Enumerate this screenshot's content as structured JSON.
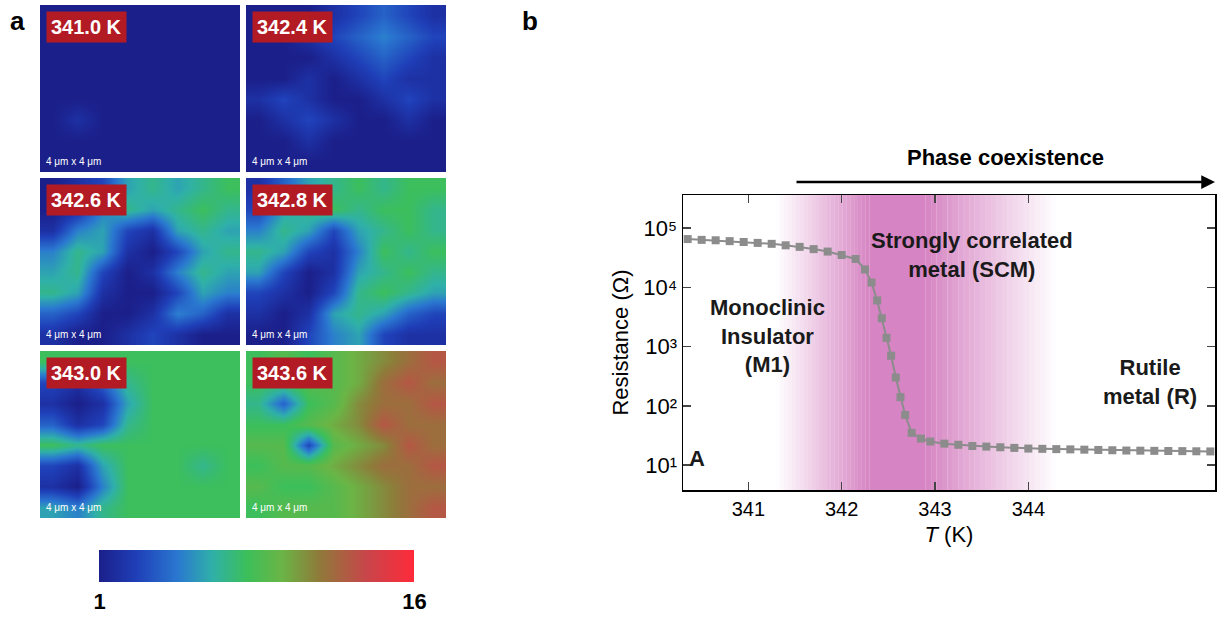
{
  "chart_data": [
    {
      "type": "heatmap",
      "letter": "a",
      "colorbar_range": [
        1,
        16
      ],
      "colorbar_ticks": [
        1,
        16
      ],
      "tiles": [
        {
          "label": "341.0 K",
          "scale_label": "4 μm x 4 μm",
          "cells": [
            [
              1,
              1,
              1,
              1,
              1,
              1,
              1,
              1
            ],
            [
              1,
              1,
              1,
              1,
              1,
              1,
              1,
              1
            ],
            [
              1,
              1,
              1,
              1,
              1,
              1,
              1,
              1
            ],
            [
              1,
              1,
              1,
              1,
              1,
              1,
              1,
              1
            ],
            [
              1,
              1,
              1,
              1,
              1,
              1,
              1,
              1
            ],
            [
              1,
              2,
              1,
              1,
              1,
              1,
              1,
              1
            ],
            [
              1,
              1,
              1,
              1,
              1,
              1,
              1,
              1
            ],
            [
              1,
              1,
              1,
              1,
              1,
              1,
              1,
              1
            ]
          ]
        },
        {
          "label": "342.4 K",
          "scale_label": "4 μm x 4 μm",
          "cells": [
            [
              1,
              1,
              1,
              2,
              3,
              4,
              3,
              2
            ],
            [
              1,
              1,
              2,
              3,
              4,
              5,
              4,
              3
            ],
            [
              1,
              1,
              1,
              2,
              3,
              4,
              3,
              2
            ],
            [
              1,
              1,
              2,
              1,
              2,
              3,
              2,
              2
            ],
            [
              2,
              3,
              2,
              1,
              1,
              2,
              3,
              2
            ],
            [
              1,
              2,
              3,
              2,
              1,
              1,
              2,
              1
            ],
            [
              1,
              1,
              2,
              1,
              1,
              1,
              1,
              1
            ],
            [
              1,
              1,
              1,
              1,
              1,
              1,
              1,
              1
            ]
          ]
        },
        {
          "label": "342.6 K",
          "scale_label": "4 μm x 4 μm",
          "cells": [
            [
              1,
              2,
              3,
              6,
              7,
              6,
              7,
              8
            ],
            [
              1,
              2,
              5,
              7,
              6,
              7,
              8,
              7
            ],
            [
              2,
              5,
              6,
              3,
              2,
              6,
              7,
              6
            ],
            [
              5,
              7,
              6,
              2,
              1,
              3,
              6,
              7
            ],
            [
              6,
              7,
              3,
              1,
              2,
              5,
              7,
              6
            ],
            [
              7,
              6,
              2,
              1,
              1,
              3,
              6,
              5
            ],
            [
              4,
              3,
              1,
              1,
              2,
              5,
              4,
              2
            ],
            [
              2,
              1,
              1,
              2,
              3,
              2,
              1,
              1
            ]
          ]
        },
        {
          "label": "342.8 K",
          "scale_label": "4 μm x 4 μm",
          "cells": [
            [
              2,
              4,
              6,
              7,
              8,
              7,
              8,
              8
            ],
            [
              3,
              6,
              7,
              8,
              7,
              8,
              8,
              7
            ],
            [
              5,
              7,
              6,
              3,
              6,
              7,
              8,
              7
            ],
            [
              7,
              6,
              3,
              2,
              5,
              8,
              7,
              8
            ],
            [
              6,
              3,
              1,
              2,
              6,
              7,
              8,
              7
            ],
            [
              3,
              2,
              1,
              3,
              7,
              8,
              7,
              6
            ],
            [
              2,
              1,
              2,
              6,
              7,
              6,
              4,
              3
            ],
            [
              1,
              1,
              3,
              5,
              6,
              3,
              2,
              2
            ]
          ]
        },
        {
          "label": "343.0 K",
          "scale_label": "4 μm x 4 μm",
          "cells": [
            [
              8,
              8,
              8,
              8,
              8,
              8,
              8,
              8
            ],
            [
              3,
              2,
              4,
              7,
              8,
              8,
              8,
              8
            ],
            [
              2,
              1,
              2,
              6,
              8,
              8,
              8,
              8
            ],
            [
              4,
              2,
              3,
              7,
              8,
              8,
              8,
              8
            ],
            [
              8,
              7,
              8,
              8,
              8,
              8,
              8,
              8
            ],
            [
              3,
              2,
              6,
              8,
              8,
              8,
              7,
              8
            ],
            [
              2,
              1,
              5,
              8,
              8,
              8,
              8,
              8
            ],
            [
              6,
              5,
              7,
              8,
              8,
              8,
              8,
              8
            ]
          ]
        },
        {
          "label": "343.6 K",
          "scale_label": "4 μm x 4 μm",
          "cells": [
            [
              8,
              9,
              8,
              9,
              10,
              11,
              12,
              13
            ],
            [
              8,
              8,
              9,
              9,
              10,
              12,
              13,
              12
            ],
            [
              7,
              4,
              8,
              9,
              11,
              12,
              12,
              13
            ],
            [
              8,
              8,
              9,
              10,
              11,
              13,
              12,
              12
            ],
            [
              9,
              9,
              3,
              9,
              10,
              11,
              13,
              12
            ],
            [
              8,
              9,
              9,
              10,
              11,
              12,
              12,
              13
            ],
            [
              9,
              8,
              8,
              9,
              10,
              11,
              12,
              12
            ],
            [
              8,
              9,
              9,
              9,
              10,
              11,
              12,
              13
            ]
          ]
        }
      ]
    },
    {
      "type": "line",
      "letter": "b",
      "xlabel": "T (K)",
      "ylabel": "Resistance (Ω)",
      "log": "y",
      "grid": false,
      "color": "#8c8c8c",
      "marker": "square",
      "xlim": [
        340.3,
        346.0
      ],
      "xticks": [
        341,
        342,
        343,
        344
      ],
      "ylim": [
        3.8,
        360000
      ],
      "yticks": [
        {
          "value": 10,
          "label": "10¹"
        },
        {
          "value": 100,
          "label": "10²"
        },
        {
          "value": 1000,
          "label": "10³"
        },
        {
          "value": 10000,
          "label": "10⁴"
        },
        {
          "value": 100000,
          "label": "10⁵"
        }
      ],
      "x": [
        340.35,
        340.5,
        340.65,
        340.8,
        340.95,
        341.1,
        341.25,
        341.4,
        341.55,
        341.7,
        341.85,
        342.0,
        342.15,
        342.25,
        342.32,
        342.38,
        342.43,
        342.48,
        342.53,
        342.58,
        342.63,
        342.68,
        342.75,
        342.85,
        342.95,
        343.1,
        343.25,
        343.4,
        343.55,
        343.7,
        343.85,
        344.0,
        344.15,
        344.3,
        344.45,
        344.6,
        344.75,
        344.9,
        345.05,
        345.2,
        345.35,
        345.5,
        345.65,
        345.8,
        345.95
      ],
      "values": [
        65000,
        63000,
        62000,
        60000,
        58000,
        56000,
        54000,
        51000,
        48000,
        44000,
        40000,
        35000,
        30000,
        20000,
        12000,
        6000,
        3000,
        1400,
        700,
        300,
        140,
        70,
        35,
        28,
        25,
        23,
        22,
        21,
        20.5,
        20,
        19.5,
        19,
        18.8,
        18.6,
        18.4,
        18.2,
        18,
        17.8,
        17.6,
        17.5,
        17.4,
        17.3,
        17.2,
        17.1,
        17
      ],
      "shading": {
        "xlim": [
          341.3,
          344.3
        ],
        "peak": [
          342.3,
          342.9
        ],
        "color": "#cf6fb8"
      },
      "arrow": {
        "text": "Phase coexistence",
        "from": 341.5
      },
      "annotations": [
        {
          "lines": [
            "Monoclinic",
            "Insulator",
            "(M1)"
          ],
          "x": 341.2,
          "y": 1500
        },
        {
          "lines": [
            "Strongly correlated",
            "metal (SCM)"
          ],
          "x": 343.4,
          "y": 35000
        },
        {
          "lines": [
            "Rutile",
            "metal (R)"
          ],
          "x": 345.3,
          "y": 250
        },
        {
          "lines": [
            "A"
          ],
          "x": 340.45,
          "y": 13
        }
      ]
    }
  ]
}
